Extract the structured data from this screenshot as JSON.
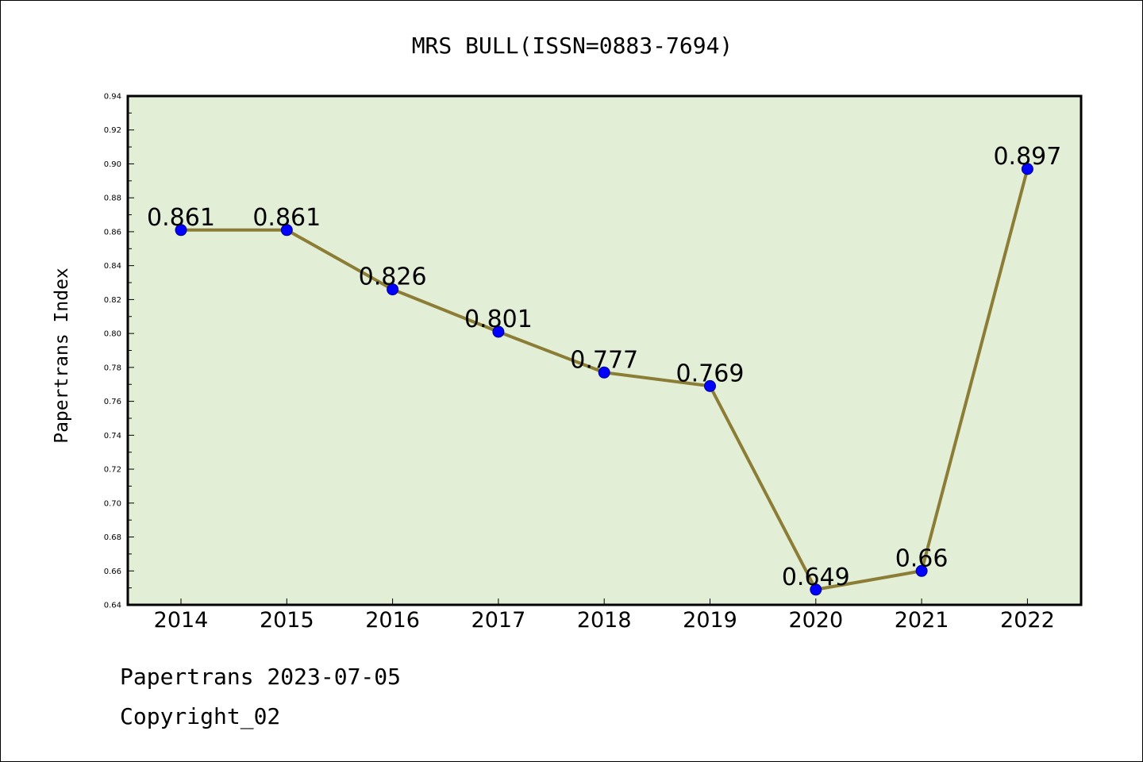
{
  "chart_data": {
    "type": "line",
    "title": "MRS BULL(ISSN=0883-7694)",
    "ylabel": "Papertrans Index",
    "xlabel": "",
    "x": [
      "2014",
      "2015",
      "2016",
      "2017",
      "2018",
      "2019",
      "2020",
      "2021",
      "2022"
    ],
    "series": [
      {
        "values": [
          0.861,
          0.861,
          0.826,
          0.801,
          0.777,
          0.769,
          0.649,
          0.66,
          0.897
        ],
        "labels": [
          "0.861",
          "0.861",
          "0.826",
          "0.801",
          "0.777",
          "0.769",
          "0.649",
          "0.66",
          "0.897"
        ]
      }
    ],
    "ylim": [
      0.64,
      0.94
    ],
    "yticks": [
      "0.64",
      "0.66",
      "0.68",
      "0.70",
      "0.72",
      "0.74",
      "0.76",
      "0.78",
      "0.80",
      "0.82",
      "0.84",
      "0.86",
      "0.88",
      "0.90",
      "0.92",
      "0.94"
    ],
    "grid": false,
    "colors": {
      "plot_background": "#e2efd6",
      "line": "#8b7d35",
      "marker_fill": "#0000ff",
      "marker_edge": "#00008b",
      "axes": "#000000"
    }
  },
  "footer": {
    "line1": "Papertrans 2023-07-05",
    "line2": "Copyright_02"
  }
}
